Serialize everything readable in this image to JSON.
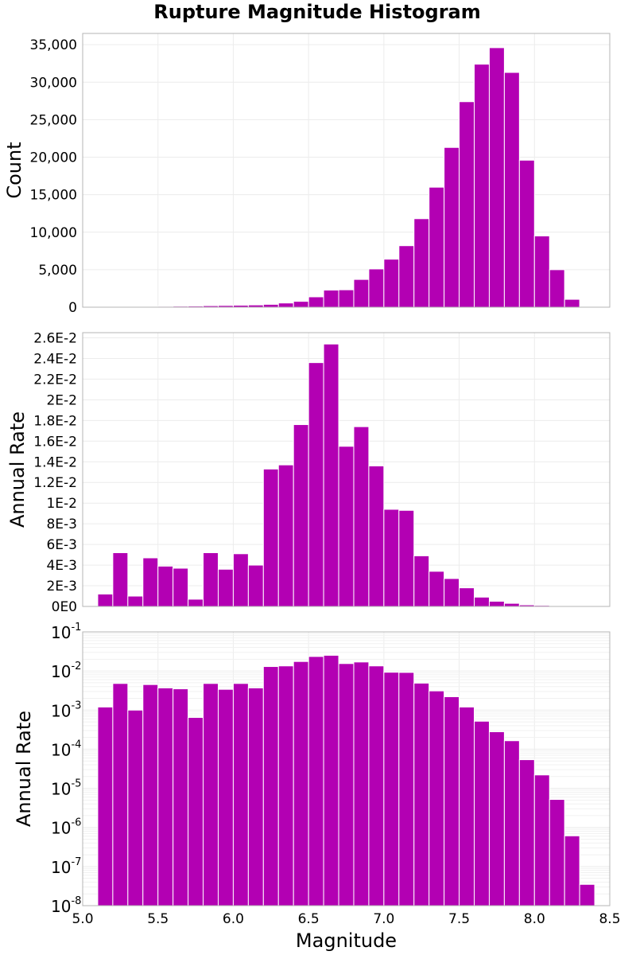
{
  "figure_title": "Rupture Magnitude Histogram",
  "chart_data": [
    {
      "type": "bar",
      "name": "count",
      "ylabel": "Count",
      "xlabel": "",
      "xlim": [
        5.0,
        8.5
      ],
      "ylim": [
        0,
        36500
      ],
      "bin_width": 0.1,
      "x": [
        5.15,
        5.25,
        5.35,
        5.45,
        5.55,
        5.65,
        5.75,
        5.85,
        5.95,
        6.05,
        6.15,
        6.25,
        6.35,
        6.45,
        6.55,
        6.65,
        6.75,
        6.85,
        6.95,
        7.05,
        7.15,
        7.25,
        7.35,
        7.45,
        7.55,
        7.65,
        7.75,
        7.85,
        7.95,
        8.05,
        8.15,
        8.25,
        8.35
      ],
      "values": [
        40,
        60,
        80,
        90,
        110,
        130,
        150,
        200,
        230,
        260,
        300,
        380,
        560,
        780,
        1380,
        2280,
        2320,
        3700,
        5100,
        6400,
        8200,
        11800,
        16000,
        21300,
        27400,
        32400,
        34600,
        31300,
        19600,
        9500,
        5000,
        1050,
        100
      ],
      "ytick_values": [
        0,
        5000,
        10000,
        15000,
        20000,
        25000,
        30000,
        35000
      ],
      "ytick_labels": [
        "0",
        "5,000",
        "10,000",
        "15,000",
        "20,000",
        "25,000",
        "30,000",
        "35,000"
      ],
      "grid": true
    },
    {
      "type": "bar",
      "name": "rate-linear",
      "ylabel": "Annual Rate",
      "xlabel": "",
      "xlim": [
        5.0,
        8.5
      ],
      "ylim": [
        0,
        0.0265
      ],
      "bin_width": 0.1,
      "x": [
        5.15,
        5.25,
        5.35,
        5.45,
        5.55,
        5.65,
        5.75,
        5.85,
        5.95,
        6.05,
        6.15,
        6.25,
        6.35,
        6.45,
        6.55,
        6.65,
        6.75,
        6.85,
        6.95,
        7.05,
        7.15,
        7.25,
        7.35,
        7.45,
        7.55,
        7.65,
        7.75,
        7.85,
        7.95,
        8.05,
        8.15,
        8.25,
        8.35
      ],
      "values": [
        0.0012,
        0.0052,
        0.001,
        0.0047,
        0.0039,
        0.0037,
        0.0007,
        0.0052,
        0.0036,
        0.0051,
        0.004,
        0.0133,
        0.0137,
        0.0176,
        0.0236,
        0.0254,
        0.0155,
        0.0174,
        0.0136,
        0.0094,
        0.0093,
        0.0049,
        0.0034,
        0.0027,
        0.0018,
        0.0009,
        0.0005,
        0.0003,
        0.00015,
        0.0001,
        3e-05,
        1e-05,
        4e-08
      ],
      "ytick_values": [
        0,
        0.002,
        0.004,
        0.006,
        0.008,
        0.01,
        0.012,
        0.014,
        0.016,
        0.018,
        0.02,
        0.022,
        0.024,
        0.026
      ],
      "ytick_labels": [
        "0E0",
        "2E-3",
        "4E-3",
        "6E-3",
        "8E-3",
        "1E-2",
        "1.2E-2",
        "1.4E-2",
        "1.6E-2",
        "1.8E-2",
        "2E-2",
        "2.2E-2",
        "2.4E-2",
        "2.6E-2"
      ],
      "grid": true
    },
    {
      "type": "bar",
      "name": "rate-log",
      "ylabel": "Annual Rate",
      "xlabel": "Magnitude",
      "xlim": [
        5.0,
        8.5
      ],
      "yscale": "log",
      "ylim": [
        1e-08,
        0.1
      ],
      "bin_width": 0.1,
      "x": [
        5.15,
        5.25,
        5.35,
        5.45,
        5.55,
        5.65,
        5.75,
        5.85,
        5.95,
        6.05,
        6.15,
        6.25,
        6.35,
        6.45,
        6.55,
        6.65,
        6.75,
        6.85,
        6.95,
        7.05,
        7.15,
        7.25,
        7.35,
        7.45,
        7.55,
        7.65,
        7.75,
        7.85,
        7.95,
        8.05,
        8.15,
        8.25,
        8.35
      ],
      "values": [
        0.0012,
        0.0048,
        0.001,
        0.0045,
        0.0037,
        0.0035,
        0.00065,
        0.0048,
        0.0034,
        0.0048,
        0.0037,
        0.013,
        0.0135,
        0.0175,
        0.0235,
        0.0252,
        0.0155,
        0.017,
        0.0135,
        0.0093,
        0.0092,
        0.0049,
        0.0031,
        0.0022,
        0.0012,
        0.00052,
        0.00028,
        0.000165,
        5.4e-05,
        2.2e-05,
        5.2e-06,
        6.1e-07,
        3.5e-08
      ],
      "ytick_base": "10",
      "ytick_exponents": [
        "-8",
        "-7",
        "-6",
        "-5",
        "-4",
        "-3",
        "-2",
        "-1"
      ],
      "xtick_values": [
        5.0,
        5.5,
        6.0,
        6.5,
        7.0,
        7.5,
        8.0,
        8.5
      ],
      "xtick_labels": [
        "5.0",
        "5.5",
        "6.0",
        "6.5",
        "7.0",
        "7.5",
        "8.0",
        "8.5"
      ],
      "grid": true
    }
  ]
}
